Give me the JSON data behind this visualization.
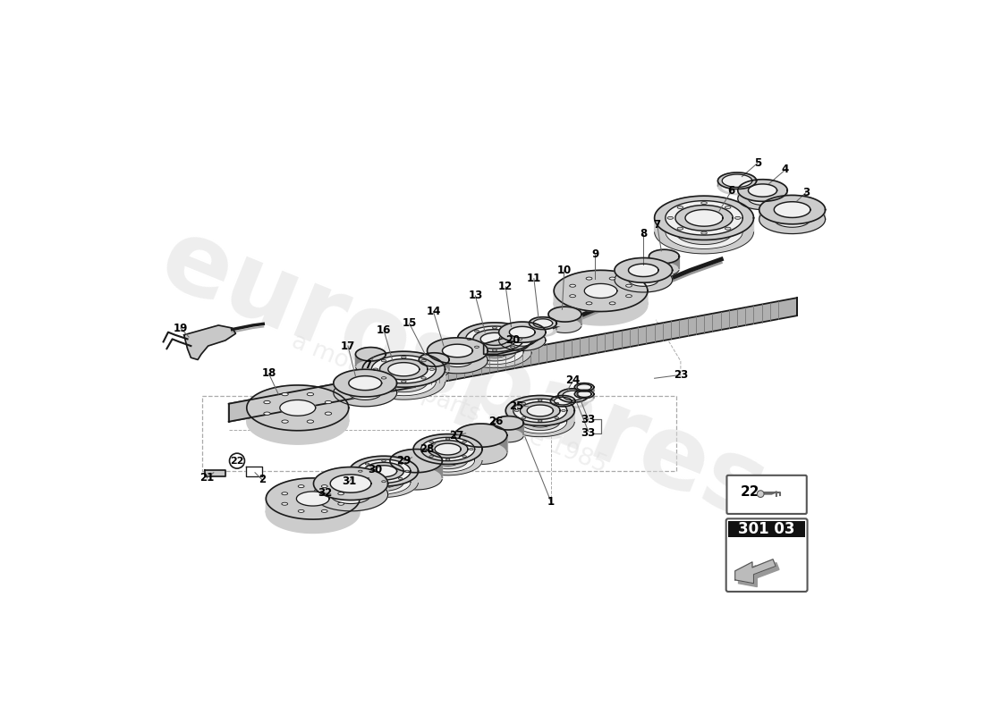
{
  "bg_color": "#ffffff",
  "lc": "#1a1a1a",
  "pf_gray": "#cccccc",
  "pf_light": "#f0f0f0",
  "pf_dark": "#888888",
  "pf_white": "#ffffff",
  "watermark1": "eurospares",
  "watermark2": "a motor for parts since 1985",
  "page_code": "301 03",
  "lfs": 8.5,
  "shaft_color": "#aaaaaa",
  "shaft_lw": 1.3,
  "part_lw": 1.2,
  "label_color": "#000000"
}
